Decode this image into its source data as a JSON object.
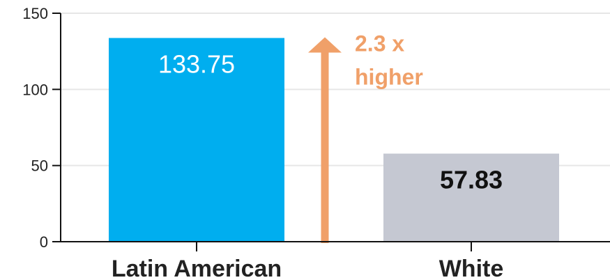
{
  "chart_data": {
    "type": "bar",
    "title": "",
    "xlabel": "",
    "ylabel": "",
    "categories": [
      "Latin American",
      "White"
    ],
    "values": [
      133.75,
      57.83
    ],
    "value_labels": [
      "133.75",
      "57.83"
    ],
    "ylim": [
      0,
      150
    ],
    "yticks": [
      0,
      50,
      100,
      150
    ],
    "grid": true,
    "legend": "none",
    "colors": {
      "bars": [
        "#00AEEF",
        "#C5C8D2"
      ],
      "value_labels": [
        "#FFFFFF",
        "#111111"
      ],
      "arrow": "#F0A069",
      "grid": "#E6E6E6",
      "axis": "#111111"
    },
    "annotation": {
      "lines": [
        "2.3 x",
        "higher"
      ],
      "from_value": 0,
      "to_value": 133.75
    }
  }
}
